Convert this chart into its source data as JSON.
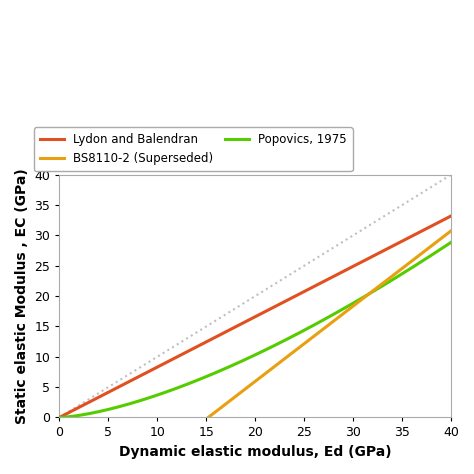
{
  "xlabel": "Dynamic elastic modulus, Ed (GPa)",
  "ylabel": "Static elastic Modulus , EC (GPa)",
  "xlim": [
    0,
    40
  ],
  "ylim": [
    0,
    40
  ],
  "xticks": [
    0,
    5,
    10,
    15,
    20,
    25,
    30,
    35,
    40
  ],
  "yticks": [
    0,
    5,
    10,
    15,
    20,
    25,
    30,
    35,
    40
  ],
  "legend_entries": [
    {
      "label": "Lydon and Balendran",
      "color": "#E05020"
    },
    {
      "label": "BS8110-2 (Superseded)",
      "color": "#E8A010"
    },
    {
      "label": "Popovics, 1975",
      "color": "#55CC00"
    }
  ],
  "ref_line_color": "#C0C0C0",
  "background_color": "#FFFFFF",
  "linewidth": 2.2,
  "lydon_a": 0.83,
  "popovics_k": 0.025,
  "popovics_n": 1.75,
  "bs8110_start": 15.2,
  "bs8110_slope": 1.24
}
